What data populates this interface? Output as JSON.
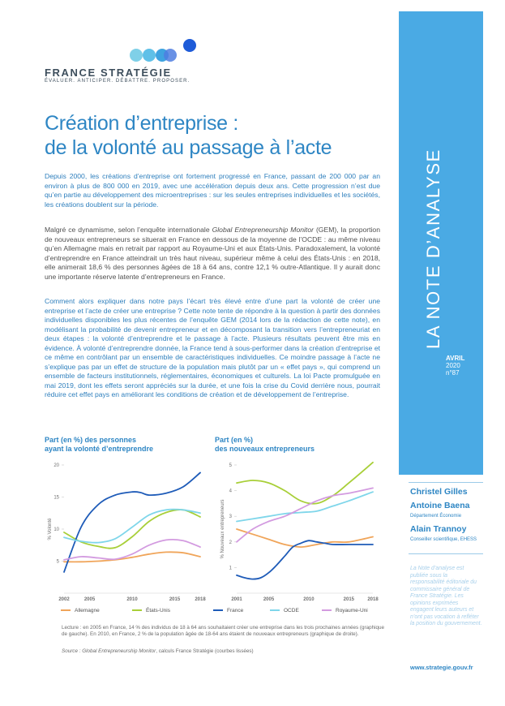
{
  "brand": {
    "name": "FRANCE STRATÉGIE",
    "tagline": "ÉVALUER. ANTICIPER. DÉBATTRE. PROPOSER.",
    "colors": {
      "primary": "#2e86c4",
      "sidebar": "#4aaae4",
      "dot_light": "#7fd0e8",
      "dot_mid": "#3fa3e0",
      "dot_dark": "#1e5bd8"
    }
  },
  "title_line1": "Création d’entreprise :",
  "title_line2": "de la volonté au passage à l’acte",
  "paragraphs": {
    "p1": "Depuis 2000, les créations d’entreprise ont fortement progressé en France, passant de 200 000 par an environ à plus de 800 000 en 2019, avec une accélération depuis deux ans. Cette progression n’est due qu’en partie au développement des microentreprises : sur les seules entreprises individuelles et les sociétés, les créations doublent sur la période.",
    "p2_before": "Malgré ce dynamisme, selon l’enquête internationale ",
    "p2_em": "Global Entrepreneurship Monitor",
    "p2_after": " (GEM), la proportion de nouveaux entrepreneurs se situerait en France en dessous de la moyenne de l’OCDE : au même niveau qu’en Allemagne mais en retrait par rapport au Royaume-Uni et aux États-Unis. Paradoxalement, la volonté d’entreprendre en France atteindrait un très haut niveau, supérieur même à celui des États-Unis : en 2018, elle animerait 18,6 % des personnes âgées de 18 à 64 ans, contre 12,1 % outre-Atlantique. Il y aurait donc une importante réserve latente d’entrepreneurs en France.",
    "p3": "Comment alors expliquer dans notre pays l’écart très élevé entre d’une part la volonté de créer une entreprise et l’acte de créer une entreprise ? Cette note tente de répondre à la question à partir des données individuelles disponibles les plus récentes de l’enquête GEM (2014 lors de la rédaction de cette note), en modélisant la probabilité de devenir entrepreneur et en décomposant la transition vers l’entrepreneuriat en deux étapes : la volonté d’entreprendre et le passage à l’acte. Plusieurs résultats peuvent être mis en évidence. À volonté d’entreprendre donnée, la France tend à sous-performer dans la création d’entreprise et ce même en contrôlant par un ensemble de caractéristiques individuelles. Ce moindre passage à l’acte ne s’explique pas par un effet de structure de la population mais plutôt par un « effet pays », qui comprend un ensemble de facteurs institutionnels, réglementaires, économiques et culturels. La loi Pacte promulguée en mai 2019, dont les effets seront appréciés sur la durée, et une fois la crise du Covid derrière nous, pourrait réduire cet effet pays en améliorant les conditions de création et de développement de l’entreprise."
  },
  "sidebar": {
    "series_title": "LA NOTE D’ANALYSE",
    "month": "AVRIL",
    "year": "2020",
    "number": "n°87",
    "authors": [
      {
        "name": "Christel Gilles"
      },
      {
        "name": "Antoine Baena",
        "affiliation": "Département Économie"
      },
      {
        "name": "Alain Trannoy",
        "affiliation": "Conseiller scientifique, EHESS"
      }
    ],
    "disclaimer_em": "La Note d’analyse",
    "disclaimer_rest": " est publiée sous la responsabilité éditoriale du commissaire général de France Stratégie. Les opinions exprimées engagent leurs auteurs et n’ont pas vocation à refléter la position du gouvernement.",
    "website": "www.strategie.gouv.fr"
  },
  "charts": {
    "left_title_line1": "Part (en %) des personnes",
    "left_title_line2": "ayant la volonté d’entreprendre",
    "right_title_line1": "Part (en %)",
    "right_title_line2": "des nouveaux entrepreneurs",
    "note_lecture": "Lecture : en 2005 en France, 14 % des individus de 18 à 64 ans souhaitaient créer une entreprise dans les trois prochaines années (graphique de gauche). En 2010, en France, 2 % de la population âgée de 18-64 ans étaient de nouveaux entrepreneurs (graphique de droite).",
    "source_label": "Source : ",
    "source_em": "Global Entrepreneurship Monitor",
    "source_rest": ", calculs France Stratégie (courbes lissées)"
  },
  "chart_data": [
    {
      "type": "line",
      "title": "Part (en %) des personnes ayant la volonté d’entreprendre",
      "ylabel": "% Volonté",
      "xlim": [
        2002,
        2018
      ],
      "ylim": [
        0,
        20
      ],
      "x_ticks": [
        2002,
        2005,
        2010,
        2015,
        2018
      ],
      "y_ticks": [
        5,
        10,
        15,
        20
      ],
      "grid": false,
      "legend_position": "bottom",
      "series": [
        {
          "name": "Allemagne",
          "color": "#f0a55a",
          "x": [
            2002,
            2004,
            2006,
            2008,
            2010,
            2012,
            2014,
            2016,
            2018
          ],
          "y": [
            4.9,
            4.9,
            5.0,
            5.2,
            5.6,
            6.1,
            6.4,
            6.3,
            5.7
          ]
        },
        {
          "name": "États-Unis",
          "color": "#a8cf38",
          "x": [
            2002,
            2004,
            2006,
            2008,
            2010,
            2012,
            2014,
            2016,
            2018
          ],
          "y": [
            9.5,
            8.0,
            7.3,
            7.1,
            8.8,
            11.2,
            12.6,
            13.0,
            11.9
          ]
        },
        {
          "name": "France",
          "color": "#1e5bb8",
          "x": [
            2002,
            2004,
            2006,
            2008,
            2010,
            2011,
            2012,
            2014,
            2016,
            2018
          ],
          "y": [
            3.3,
            10.3,
            13.8,
            15.3,
            15.8,
            15.7,
            15.3,
            15.6,
            16.6,
            18.8
          ]
        },
        {
          "name": "OCDE",
          "color": "#7fd6ea",
          "x": [
            2002,
            2004,
            2006,
            2008,
            2010,
            2012,
            2014,
            2016,
            2018
          ],
          "y": [
            8.7,
            8.1,
            7.9,
            8.5,
            10.3,
            12.2,
            13.0,
            13.0,
            12.5
          ]
        },
        {
          "name": "Royaume-Uni",
          "color": "#d39be0",
          "x": [
            2002,
            2004,
            2006,
            2008,
            2010,
            2012,
            2014,
            2016,
            2018
          ],
          "y": [
            5.2,
            5.7,
            5.5,
            5.3,
            6.1,
            7.5,
            8.3,
            8.2,
            7.2
          ]
        }
      ]
    },
    {
      "type": "line",
      "title": "Part (en %) des nouveaux entrepreneurs",
      "ylabel": "% Nouveaux entrepreneurs",
      "xlim": [
        2001,
        2018
      ],
      "ylim": [
        0,
        5
      ],
      "x_ticks": [
        2001,
        2005,
        2010,
        2015,
        2018
      ],
      "y_ticks": [
        1,
        2,
        3,
        4,
        5
      ],
      "grid": false,
      "legend_position": "bottom",
      "series": [
        {
          "name": "Allemagne",
          "color": "#f0a55a",
          "x": [
            2001,
            2003,
            2005,
            2007,
            2009,
            2011,
            2013,
            2015,
            2018
          ],
          "y": [
            2.5,
            2.3,
            2.1,
            1.9,
            1.8,
            1.9,
            2.0,
            2.0,
            2.2
          ]
        },
        {
          "name": "États-Unis",
          "color": "#a8cf38",
          "x": [
            2001,
            2003,
            2005,
            2007,
            2009,
            2011,
            2013,
            2015,
            2018
          ],
          "y": [
            4.3,
            4.4,
            4.3,
            4.0,
            3.6,
            3.5,
            3.8,
            4.3,
            5.1
          ]
        },
        {
          "name": "France",
          "color": "#1e5bb8",
          "x": [
            2001,
            2002,
            2003,
            2004,
            2005,
            2006,
            2007,
            2008,
            2009,
            2010,
            2011,
            2012,
            2013,
            2015,
            2018
          ],
          "y": [
            0.7,
            0.6,
            0.55,
            0.6,
            0.8,
            1.1,
            1.45,
            1.8,
            1.95,
            2.05,
            2.0,
            1.95,
            1.9,
            1.9,
            1.9
          ]
        },
        {
          "name": "OCDE",
          "color": "#7fd6ea",
          "x": [
            2001,
            2003,
            2005,
            2007,
            2009,
            2011,
            2013,
            2015,
            2018
          ],
          "y": [
            2.8,
            2.9,
            3.0,
            3.1,
            3.15,
            3.2,
            3.4,
            3.6,
            3.95
          ]
        },
        {
          "name": "Royaume-Uni",
          "color": "#d39be0",
          "x": [
            2001,
            2003,
            2005,
            2007,
            2009,
            2011,
            2013,
            2015,
            2018
          ],
          "y": [
            2.0,
            2.5,
            2.8,
            3.0,
            3.3,
            3.6,
            3.8,
            3.9,
            4.1
          ]
        }
      ]
    }
  ]
}
